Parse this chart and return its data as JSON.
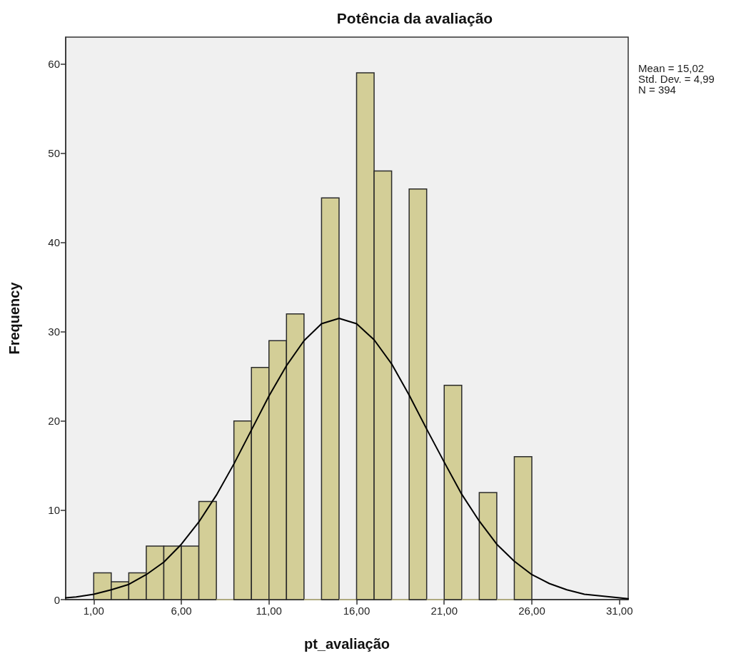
{
  "chart_data": {
    "type": "histogram",
    "title": "Potência da avaliação",
    "xlabel": "pt_avaliação",
    "ylabel": "Frequency",
    "annotations": [
      "Mean = 15,02",
      "Std. Dev. = 4,99",
      "N = 394"
    ],
    "bins": [
      1,
      2,
      3,
      4,
      5,
      6,
      7,
      8,
      9,
      10,
      11,
      12,
      13,
      14,
      15,
      16,
      17,
      18,
      19,
      20,
      21,
      22,
      23,
      24,
      25,
      26
    ],
    "values": [
      3,
      2,
      3,
      6,
      6,
      6,
      11,
      0,
      20,
      26,
      29,
      32,
      0,
      45,
      0,
      59,
      48,
      0,
      46,
      0,
      24,
      0,
      12,
      0,
      16
    ],
    "color": "#d3ce97",
    "series": [
      {
        "type": "line",
        "color": "#000000",
        "marker": "none",
        "x": [
          -0.6,
          0,
          1,
          2,
          3,
          4,
          5,
          6,
          7,
          8,
          9,
          10,
          11,
          12,
          13,
          14,
          15,
          16,
          17,
          18,
          19,
          20,
          21,
          22,
          23,
          24,
          25,
          26,
          27,
          28,
          29,
          30,
          31,
          31.5
        ],
        "values": [
          0.2,
          0.3,
          0.6,
          1.1,
          1.7,
          2.8,
          4.2,
          6.2,
          8.7,
          11.7,
          15.2,
          19.0,
          22.8,
          26.2,
          29.0,
          30.9,
          31.5,
          30.9,
          29.1,
          26.4,
          22.9,
          19.1,
          15.4,
          11.8,
          8.8,
          6.2,
          4.3,
          2.8,
          1.8,
          1.1,
          0.6,
          0.4,
          0.2,
          0.1
        ]
      }
    ],
    "xlim": [
      -0.6,
      31.5
    ],
    "ylim": [
      0,
      63
    ],
    "xticks": [
      {
        "value": 1,
        "label": "1,00"
      },
      {
        "value": 6,
        "label": "6,00"
      },
      {
        "value": 11,
        "label": "11,00"
      },
      {
        "value": 16,
        "label": "16,00"
      },
      {
        "value": 21,
        "label": "21,00"
      },
      {
        "value": 26,
        "label": "26,00"
      },
      {
        "value": 31,
        "label": "31,00"
      }
    ],
    "yticks": [
      0,
      10,
      20,
      30,
      40,
      50,
      60
    ],
    "grid": false
  }
}
